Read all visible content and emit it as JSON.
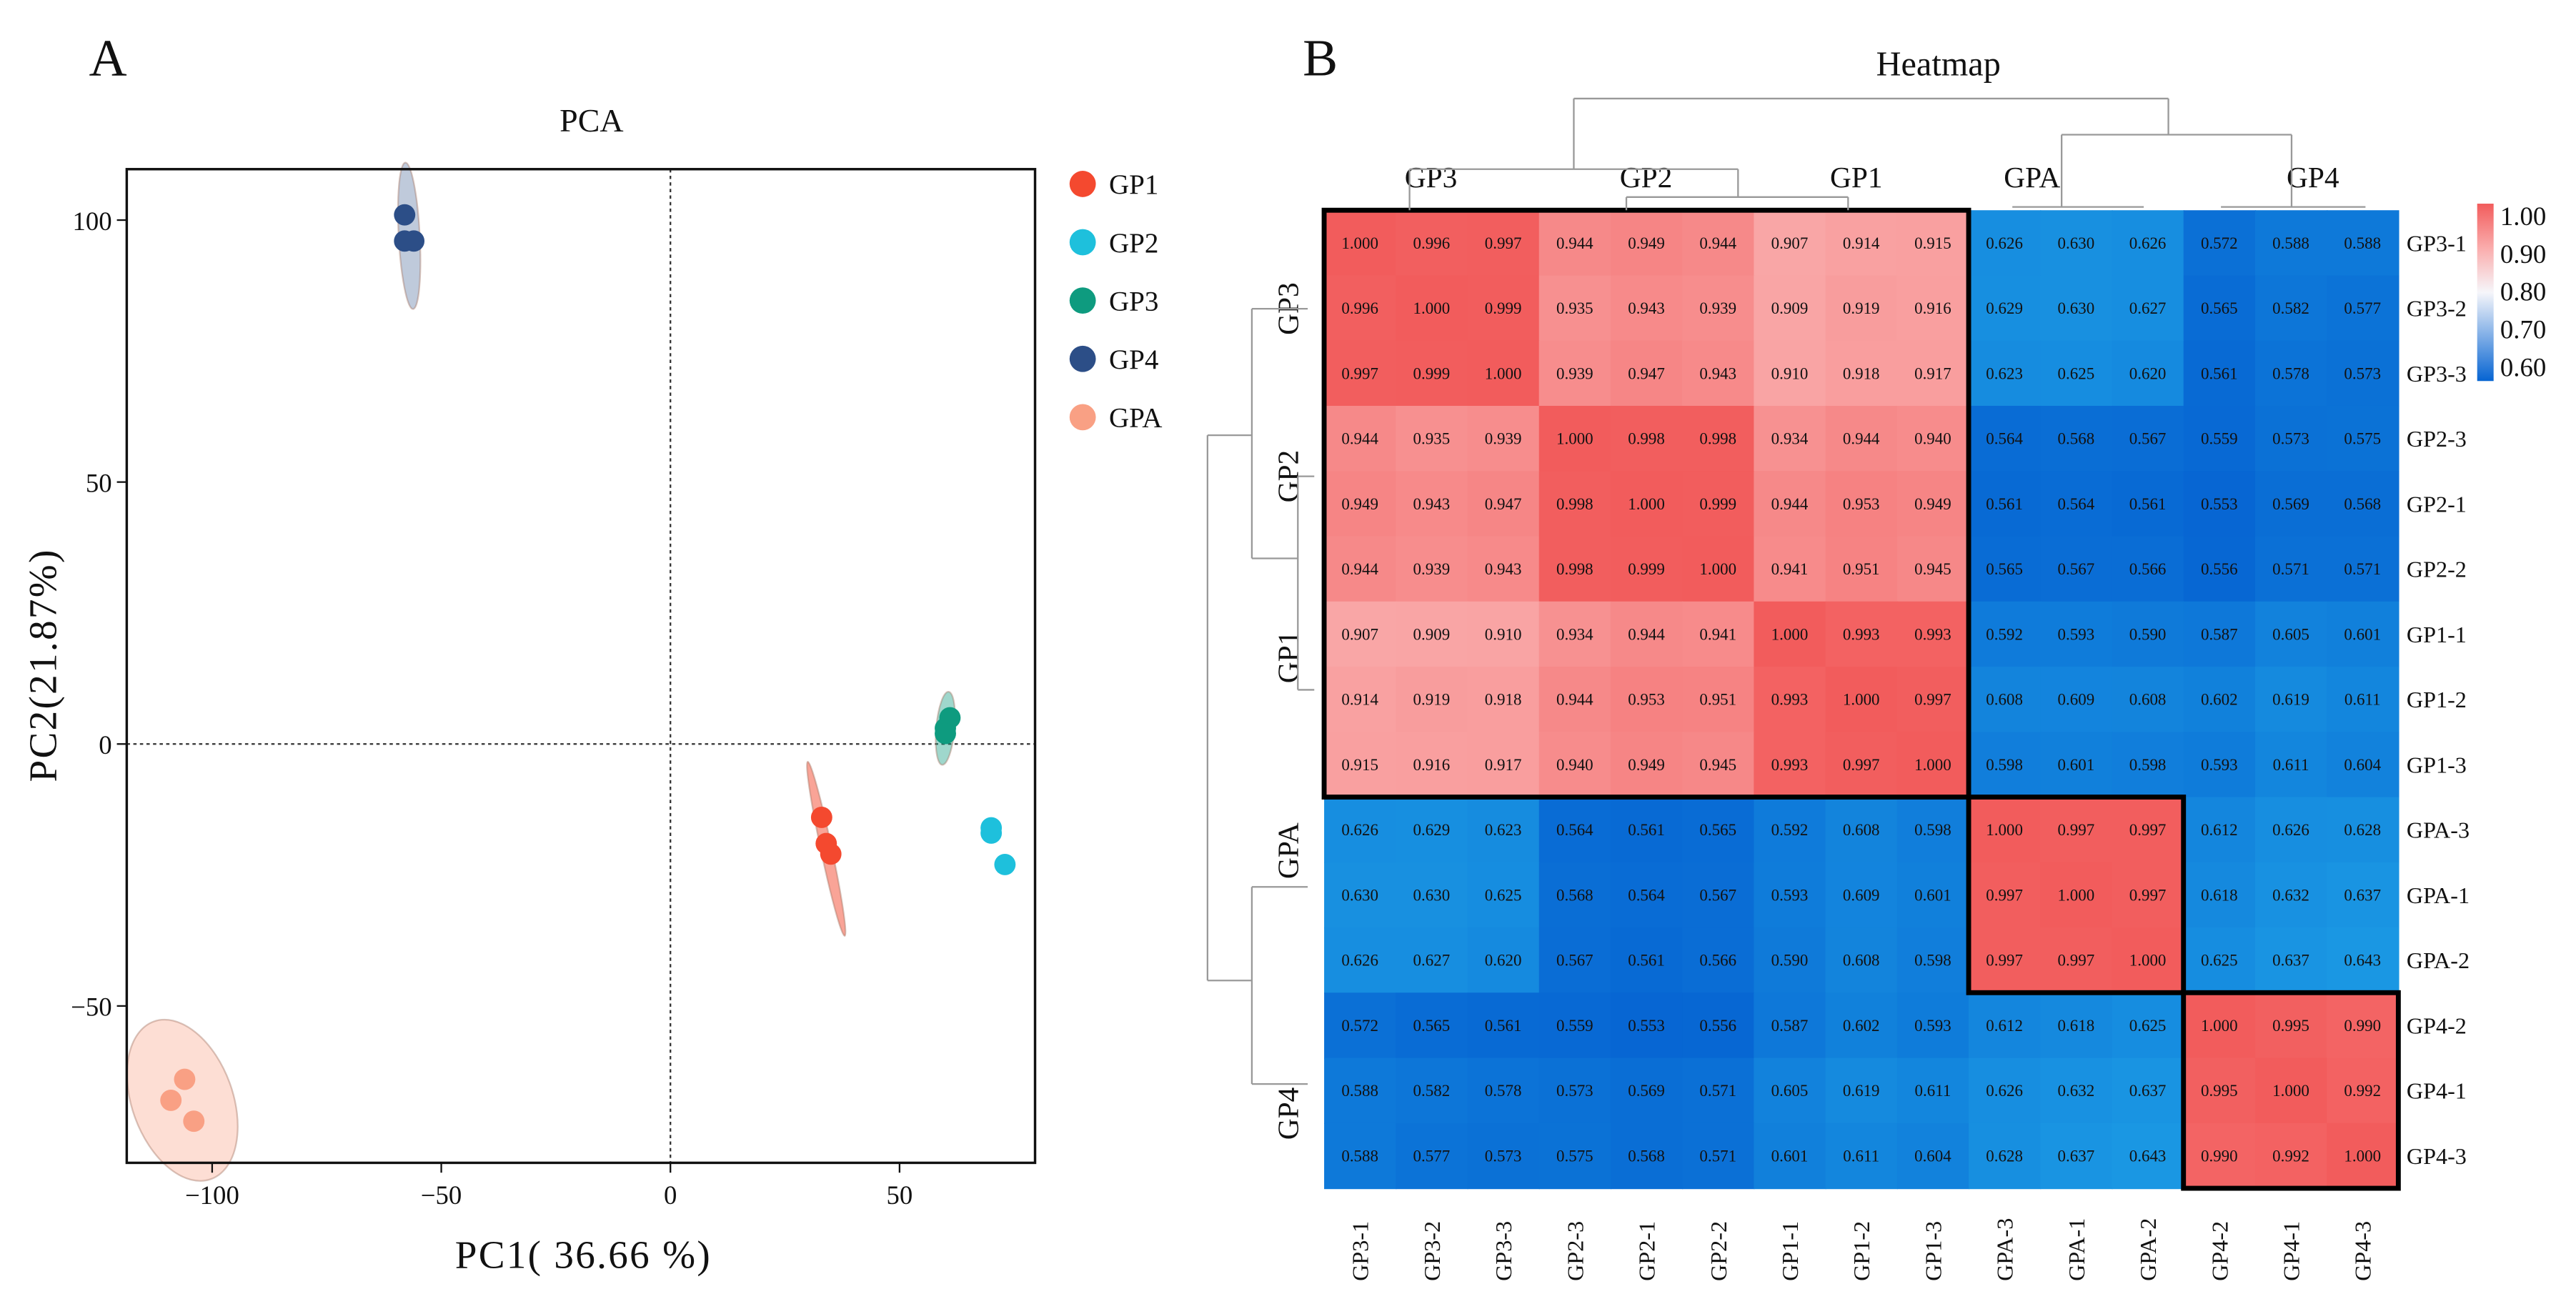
{
  "panel_labels": [
    "A",
    "B"
  ],
  "chart_data": [
    {
      "type": "scatter",
      "title": "PCA",
      "xlabel": "PC1( 36.66 %)",
      "ylabel": "PC2(21.87%)",
      "xlim": [
        -118,
        80
      ],
      "ylim": [
        -80,
        110
      ],
      "xticks": [
        -100,
        -50,
        0,
        50
      ],
      "yticks": [
        -50,
        0,
        50,
        100
      ],
      "grid": false,
      "reference_lines": {
        "x": 0,
        "y": 0
      },
      "legend_position": "right",
      "series": [
        {
          "name": "GP1",
          "color": "#f4492f",
          "points": [
            [
              33,
              -14
            ],
            [
              34,
              -19
            ],
            [
              35,
              -21
            ]
          ]
        },
        {
          "name": "GP2",
          "color": "#1ec0dc",
          "points": [
            [
              70,
              -16
            ],
            [
              70,
              -17
            ],
            [
              73,
              -23
            ]
          ]
        },
        {
          "name": "GP3",
          "color": "#0e9b7f",
          "points": [
            [
              60,
              3
            ],
            [
              61,
              5
            ],
            [
              60,
              2
            ]
          ]
        },
        {
          "name": "GP4",
          "color": "#2c4e87",
          "points": [
            [
              -58,
              101
            ],
            [
              -58,
              96
            ],
            [
              -56,
              96
            ]
          ]
        },
        {
          "name": "GPA",
          "color": "#f9a084",
          "points": [
            [
              -106,
              -64
            ],
            [
              -109,
              -68
            ],
            [
              -104,
              -72
            ]
          ]
        }
      ]
    },
    {
      "type": "heatmap",
      "title": "Heatmap",
      "row_labels": [
        "GP3-1",
        "GP3-2",
        "GP3-3",
        "GP2-3",
        "GP2-1",
        "GP2-2",
        "GP1-1",
        "GP1-2",
        "GP1-3",
        "GPA-3",
        "GPA-1",
        "GPA-2",
        "GP4-2",
        "GP4-1",
        "GP4-3"
      ],
      "col_labels": [
        "GP3-1",
        "GP3-2",
        "GP3-3",
        "GP2-3",
        "GP2-1",
        "GP2-2",
        "GP1-1",
        "GP1-2",
        "GP1-3",
        "GPA-3",
        "GPA-1",
        "GPA-2",
        "GP4-2",
        "GP4-1",
        "GP4-3"
      ],
      "col_groups": [
        "GP3",
        "GP2",
        "GP1",
        "GPA",
        "GP4"
      ],
      "row_groups": [
        "GP3",
        "GP2",
        "GP1",
        "GPA",
        "GP4"
      ],
      "colorbar": {
        "ticks": [
          "1.00",
          "0.90",
          "0.80",
          "0.70",
          "0.60"
        ],
        "range": [
          0.6,
          1.0
        ],
        "colors": [
          "#0a6ad4",
          "#ffffff",
          "#f25c5c"
        ]
      },
      "values": [
        [
          "1.000",
          "0.996",
          "0.997",
          "0.944",
          "0.949",
          "0.944",
          "0.907",
          "0.914",
          "0.915",
          "0.626",
          "0.630",
          "0.626",
          "0.572",
          "0.588",
          "0.588"
        ],
        [
          "0.996",
          "1.000",
          "0.999",
          "0.935",
          "0.943",
          "0.939",
          "0.909",
          "0.919",
          "0.916",
          "0.629",
          "0.630",
          "0.627",
          "0.565",
          "0.582",
          "0.577"
        ],
        [
          "0.997",
          "0.999",
          "1.000",
          "0.939",
          "0.947",
          "0.943",
          "0.910",
          "0.918",
          "0.917",
          "0.623",
          "0.625",
          "0.620",
          "0.561",
          "0.578",
          "0.573"
        ],
        [
          "0.944",
          "0.935",
          "0.939",
          "1.000",
          "0.998",
          "0.998",
          "0.934",
          "0.944",
          "0.940",
          "0.564",
          "0.568",
          "0.567",
          "0.559",
          "0.573",
          "0.575"
        ],
        [
          "0.949",
          "0.943",
          "0.947",
          "0.998",
          "1.000",
          "0.999",
          "0.944",
          "0.953",
          "0.949",
          "0.561",
          "0.564",
          "0.561",
          "0.553",
          "0.569",
          "0.568"
        ],
        [
          "0.944",
          "0.939",
          "0.943",
          "0.998",
          "0.999",
          "1.000",
          "0.941",
          "0.951",
          "0.945",
          "0.565",
          "0.567",
          "0.566",
          "0.556",
          "0.571",
          "0.571"
        ],
        [
          "0.907",
          "0.909",
          "0.910",
          "0.934",
          "0.944",
          "0.941",
          "1.000",
          "0.993",
          "0.993",
          "0.592",
          "0.593",
          "0.590",
          "0.587",
          "0.605",
          "0.601"
        ],
        [
          "0.914",
          "0.919",
          "0.918",
          "0.944",
          "0.953",
          "0.951",
          "0.993",
          "1.000",
          "0.997",
          "0.608",
          "0.609",
          "0.608",
          "0.602",
          "0.619",
          "0.611"
        ],
        [
          "0.915",
          "0.916",
          "0.917",
          "0.940",
          "0.949",
          "0.945",
          "0.993",
          "0.997",
          "1.000",
          "0.598",
          "0.601",
          "0.598",
          "0.593",
          "0.611",
          "0.604"
        ],
        [
          "0.626",
          "0.629",
          "0.623",
          "0.564",
          "0.561",
          "0.565",
          "0.592",
          "0.608",
          "0.598",
          "1.000",
          "0.997",
          "0.997",
          "0.612",
          "0.626",
          "0.628"
        ],
        [
          "0.630",
          "0.630",
          "0.625",
          "0.568",
          "0.564",
          "0.567",
          "0.593",
          "0.609",
          "0.601",
          "0.997",
          "1.000",
          "0.997",
          "0.618",
          "0.632",
          "0.637"
        ],
        [
          "0.626",
          "0.627",
          "0.620",
          "0.567",
          "0.561",
          "0.566",
          "0.590",
          "0.608",
          "0.598",
          "0.997",
          "0.997",
          "1.000",
          "0.625",
          "0.637",
          "0.643"
        ],
        [
          "0.572",
          "0.565",
          "0.561",
          "0.559",
          "0.553",
          "0.556",
          "0.587",
          "0.602",
          "0.593",
          "0.612",
          "0.618",
          "0.625",
          "1.000",
          "0.995",
          "0.990"
        ],
        [
          "0.588",
          "0.582",
          "0.578",
          "0.573",
          "0.569",
          "0.571",
          "0.605",
          "0.619",
          "0.611",
          "0.626",
          "0.632",
          "0.637",
          "0.995",
          "1.000",
          "0.992"
        ],
        [
          "0.588",
          "0.577",
          "0.573",
          "0.575",
          "0.568",
          "0.571",
          "0.601",
          "0.611",
          "0.604",
          "0.628",
          "0.637",
          "0.643",
          "0.990",
          "0.992",
          "1.000"
        ]
      ]
    }
  ]
}
